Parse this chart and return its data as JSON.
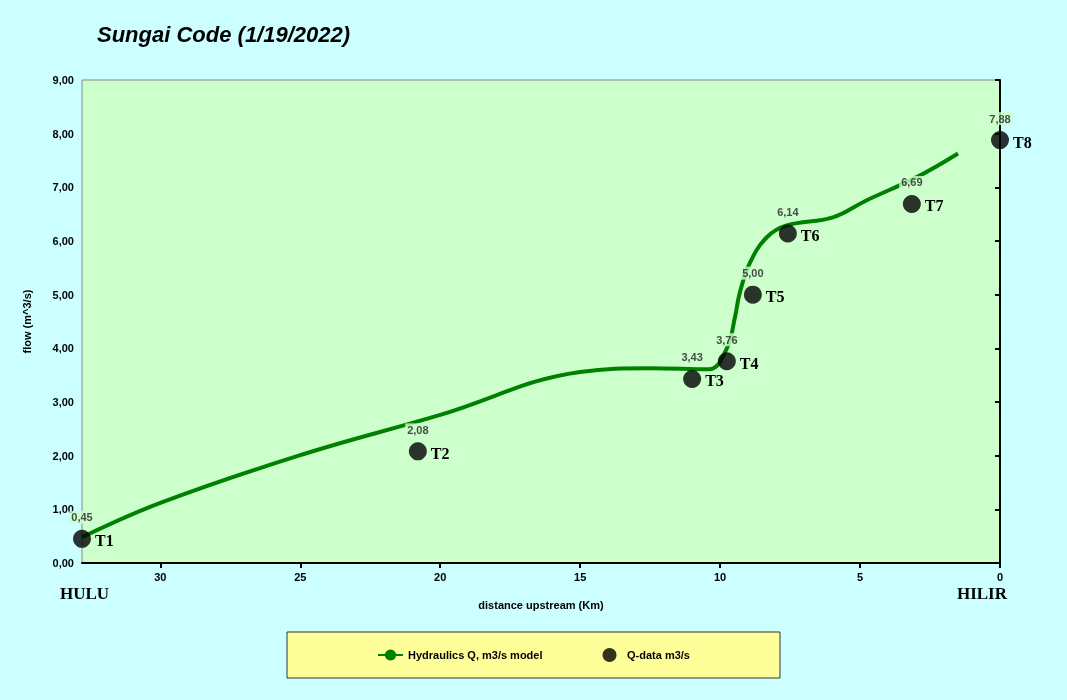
{
  "chart_data": {
    "type": "scatter",
    "title": "Sungai Code (1/19/2022)",
    "xlabel": "distance upstream (Km)",
    "ylabel": "flow (m^3/s)",
    "xlim": [
      32.8,
      0
    ],
    "xticks": [
      30,
      25,
      20,
      15,
      10,
      5,
      0
    ],
    "ylim": [
      0,
      9
    ],
    "yticks": [
      {
        "value": 0,
        "label": "0,00"
      },
      {
        "value": 1,
        "label": "1,00"
      },
      {
        "value": 2,
        "label": "2,00"
      },
      {
        "value": 3,
        "label": "3,00"
      },
      {
        "value": 4,
        "label": "4,00"
      },
      {
        "value": 5,
        "label": "5,00"
      },
      {
        "value": 6,
        "label": "6,00"
      },
      {
        "value": 7,
        "label": "7,00"
      },
      {
        "value": 8,
        "label": "8,00"
      },
      {
        "value": 9,
        "label": "9,00"
      }
    ],
    "grid": false,
    "legend": "bottom",
    "series": [
      {
        "name": "Hydraulics Q, m3/s model",
        "type": "line",
        "color": "#008000",
        "marker": "none",
        "x": [
          32.8,
          30,
          25,
          20,
          15,
          12.5,
          10.4,
          9.76,
          9.47,
          9.3,
          8.94,
          8.33,
          7.62,
          5.97,
          4.76,
          2.97,
          1.5
        ],
        "values": [
          0.48,
          1.12,
          2.01,
          2.76,
          3.56,
          3.63,
          3.61,
          4.0,
          4.58,
          5.03,
          5.59,
          6.07,
          6.29,
          6.44,
          6.76,
          7.19,
          7.63
        ]
      },
      {
        "name": "Q-data m3/s",
        "color": "#000000",
        "marker": "circle",
        "x": [
          32.8,
          20.8,
          11.0,
          9.76,
          8.83,
          7.58,
          3.15,
          0.0
        ],
        "values": [
          0.45,
          2.08,
          3.43,
          3.76,
          5.0,
          6.14,
          6.69,
          7.88
        ],
        "value_labels": [
          "0,45",
          "2,08",
          "3,43",
          "3,76",
          "5,00",
          "6,14",
          "6,69",
          "7,88"
        ]
      }
    ],
    "annotations": [
      {
        "text": "T1",
        "x": 32.8,
        "y": 0.45
      },
      {
        "text": "T2",
        "x": 20.8,
        "y": 2.08
      },
      {
        "text": "T3",
        "x": 11.0,
        "y": 3.43
      },
      {
        "text": "T4",
        "x": 9.76,
        "y": 3.76
      },
      {
        "text": "T5",
        "x": 8.83,
        "y": 5.0
      },
      {
        "text": "T6",
        "x": 7.58,
        "y": 6.14
      },
      {
        "text": "T7",
        "x": 3.15,
        "y": 6.69
      },
      {
        "text": "T8",
        "x": 0.0,
        "y": 7.88
      },
      "HULU",
      "HILIR"
    ]
  }
}
